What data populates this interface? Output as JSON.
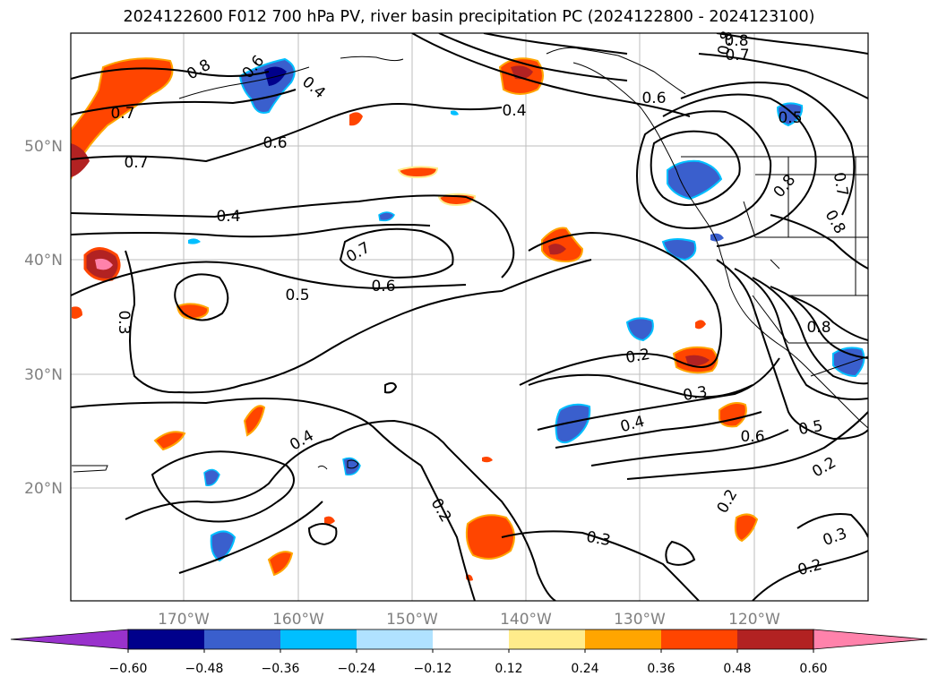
{
  "title": "2024122600 F012 700 hPa PV, river basin precipitation PC (2024122800 - 2024123100)",
  "map": {
    "lon_ticks": [
      "170°W",
      "160°W",
      "150°W",
      "140°W",
      "130°W",
      "120°W"
    ],
    "lat_ticks": [
      "50°N",
      "40°N",
      "30°N",
      "20°N"
    ],
    "contour_labels": [
      "0.8",
      "0.6",
      "0.4",
      "0.7",
      "0.7",
      "0.6",
      "0.4",
      "0.8",
      "0.8",
      "0.7",
      "0.6",
      "0.4",
      "0.5",
      "0.7",
      "0.6",
      "0.5",
      "0.3",
      "0.2",
      "0.3",
      "0.4",
      "0.6",
      "0.5",
      "0.4",
      "0.2",
      "0.3",
      "0.2",
      "0.2",
      "0.3",
      "0.2",
      "0.8",
      "0.8",
      "0.7",
      "0.8"
    ]
  },
  "colorbar": {
    "tick_labels": [
      "−0.60",
      "−0.48",
      "−0.36",
      "−0.24",
      "−0.12",
      "0.12",
      "0.24",
      "0.36",
      "0.48",
      "0.60"
    ],
    "colors": [
      "#9932cc",
      "#00008b",
      "#3a5fcd",
      "#00bfff",
      "#b0e2ff",
      "#ffffff",
      "#ffec8b",
      "#ffa500",
      "#ff4500",
      "#b22222",
      "#ff82ab"
    ]
  },
  "colors": {
    "coast": "#000000",
    "grid": "#bdbdbd",
    "axis_text": "#808080"
  }
}
